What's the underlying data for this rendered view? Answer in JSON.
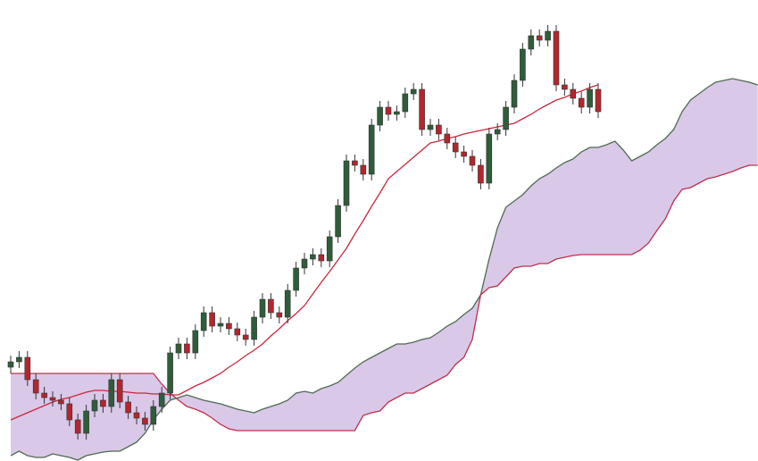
{
  "chart_data": {
    "type": "candlestick",
    "ylim": [
      0,
      516
    ],
    "grid": false,
    "up_color": "#2f5d3a",
    "down_color": "#b3262e",
    "cloud_color": "#d9c8e8",
    "candles": {
      "open": [
        105,
        111,
        116,
        91,
        76,
        71,
        68,
        64,
        46,
        31,
        56,
        68,
        61,
        91,
        66,
        54,
        48,
        41,
        61,
        76,
        121,
        131,
        121,
        146,
        166,
        151,
        154,
        148,
        141,
        136,
        161,
        181,
        166,
        161,
        191,
        216,
        226,
        231,
        224,
        251,
        286,
        336,
        331,
        321,
        376,
        396,
        388,
        391,
        411,
        416,
        371,
        376,
        366,
        356,
        346,
        341,
        331,
        311,
        366,
        371,
        396,
        426,
        461,
        476,
        471,
        481,
        421,
        416,
        406,
        396,
        416,
        null,
        null,
        null,
        null,
        null,
        null,
        null,
        null,
        null,
        null,
        null,
        null,
        null,
        null,
        null,
        null,
        null,
        null,
        null
      ],
      "high": [
        118,
        123,
        123,
        98,
        83,
        78,
        75,
        71,
        53,
        63,
        75,
        75,
        98,
        98,
        73,
        61,
        55,
        68,
        83,
        128,
        138,
        138,
        153,
        173,
        173,
        161,
        161,
        155,
        148,
        168,
        188,
        188,
        173,
        198,
        223,
        233,
        238,
        238,
        258,
        293,
        343,
        343,
        338,
        383,
        403,
        403,
        398,
        418,
        423,
        423,
        383,
        383,
        373,
        363,
        353,
        348,
        338,
        373,
        378,
        403,
        433,
        468,
        483,
        483,
        488,
        488,
        428,
        423,
        413,
        423,
        423,
        null,
        null,
        null,
        null,
        null,
        null,
        null,
        null,
        null,
        null,
        null,
        null,
        null,
        null,
        null,
        null,
        null,
        null,
        null
      ],
      "low": [
        98,
        104,
        84,
        69,
        64,
        61,
        57,
        39,
        24,
        24,
        49,
        54,
        54,
        59,
        47,
        41,
        34,
        34,
        54,
        69,
        114,
        114,
        114,
        139,
        144,
        144,
        141,
        134,
        129,
        129,
        154,
        159,
        154,
        154,
        184,
        209,
        219,
        217,
        217,
        244,
        279,
        324,
        314,
        314,
        369,
        381,
        381,
        384,
        404,
        364,
        364,
        359,
        349,
        339,
        334,
        324,
        304,
        304,
        359,
        364,
        389,
        419,
        454,
        464,
        464,
        414,
        409,
        399,
        389,
        389,
        384,
        null,
        null,
        null,
        null,
        null,
        null,
        null,
        null,
        null,
        null,
        null,
        null,
        null,
        null,
        null,
        null,
        null,
        null,
        null
      ],
      "close": [
        111,
        116,
        91,
        76,
        71,
        68,
        64,
        46,
        31,
        56,
        68,
        61,
        91,
        66,
        54,
        48,
        41,
        61,
        76,
        121,
        131,
        121,
        146,
        166,
        151,
        154,
        148,
        141,
        136,
        161,
        181,
        166,
        161,
        191,
        216,
        226,
        231,
        224,
        251,
        286,
        336,
        331,
        321,
        376,
        396,
        388,
        391,
        411,
        416,
        371,
        376,
        366,
        356,
        346,
        341,
        331,
        311,
        366,
        371,
        396,
        426,
        461,
        476,
        471,
        481,
        421,
        416,
        406,
        396,
        416,
        391,
        null,
        null,
        null,
        null,
        null,
        null,
        null,
        null,
        null,
        null,
        null,
        null,
        null,
        null,
        null,
        null,
        null,
        null,
        null
      ]
    },
    "series": [
      {
        "color": "#c8283c",
        "values": [
          46,
          50,
          54,
          58,
          62,
          66,
          69,
          71,
          74,
          77,
          79,
          79,
          78,
          78,
          77,
          76,
          76,
          75,
          75,
          74,
          74,
          79,
          84,
          88,
          93,
          98,
          105,
          111,
          118,
          124,
          131,
          140,
          148,
          157,
          165,
          174,
          187,
          200,
          212,
          225,
          238,
          254,
          269,
          285,
          300,
          316,
          324,
          332,
          340,
          348,
          356,
          358,
          361,
          363,
          366,
          368,
          370,
          372,
          374,
          376,
          378,
          383,
          388,
          394,
          399,
          404,
          407,
          411,
          414,
          418,
          421,
          null,
          null,
          null,
          null,
          null,
          null,
          null,
          null,
          null,
          null,
          null,
          null,
          null,
          null,
          null,
          null,
          null,
          null,
          null
        ]
      },
      {
        "color": "#4e6b50",
        "values": [
          6,
          11,
          6,
          4,
          4,
          8,
          6,
          4,
          1,
          6,
          8,
          10,
          11,
          11,
          16,
          21,
          31,
          46,
          58,
          68,
          71,
          74,
          71,
          68,
          66,
          64,
          61,
          58,
          56,
          54,
          58,
          61,
          64,
          68,
          76,
          78,
          76,
          81,
          84,
          88,
          96,
          104,
          111,
          116,
          121,
          126,
          131,
          131,
          133,
          136,
          138,
          144,
          151,
          156,
          164,
          171,
          186,
          226,
          261,
          284,
          291,
          298,
          308,
          316,
          321,
          328,
          334,
          338,
          346,
          351,
          351,
          354,
          358,
          348,
          336,
          341,
          346,
          354,
          361,
          371,
          391,
          404,
          411,
          418,
          424,
          426,
          428,
          426,
          424,
          421
        ]
      },
      {
        "color": "#c0304a",
        "values": [
          98,
          98,
          98,
          98,
          98,
          98,
          98,
          98,
          98,
          98,
          98,
          98,
          98,
          98,
          98,
          98,
          98,
          98,
          86,
          76,
          68,
          61,
          58,
          54,
          48,
          41,
          36,
          34,
          34,
          34,
          34,
          34,
          34,
          34,
          34,
          34,
          34,
          34,
          34,
          34,
          34,
          34,
          51,
          54,
          56,
          66,
          71,
          76,
          76,
          81,
          86,
          91,
          96,
          108,
          116,
          136,
          186,
          194,
          196,
          206,
          216,
          218,
          218,
          221,
          221,
          226,
          228,
          230,
          231,
          231,
          231,
          231,
          231,
          231,
          231,
          236,
          244,
          258,
          271,
          291,
          304,
          306,
          311,
          316,
          318,
          321,
          324,
          328,
          331,
          331
        ]
      }
    ]
  }
}
